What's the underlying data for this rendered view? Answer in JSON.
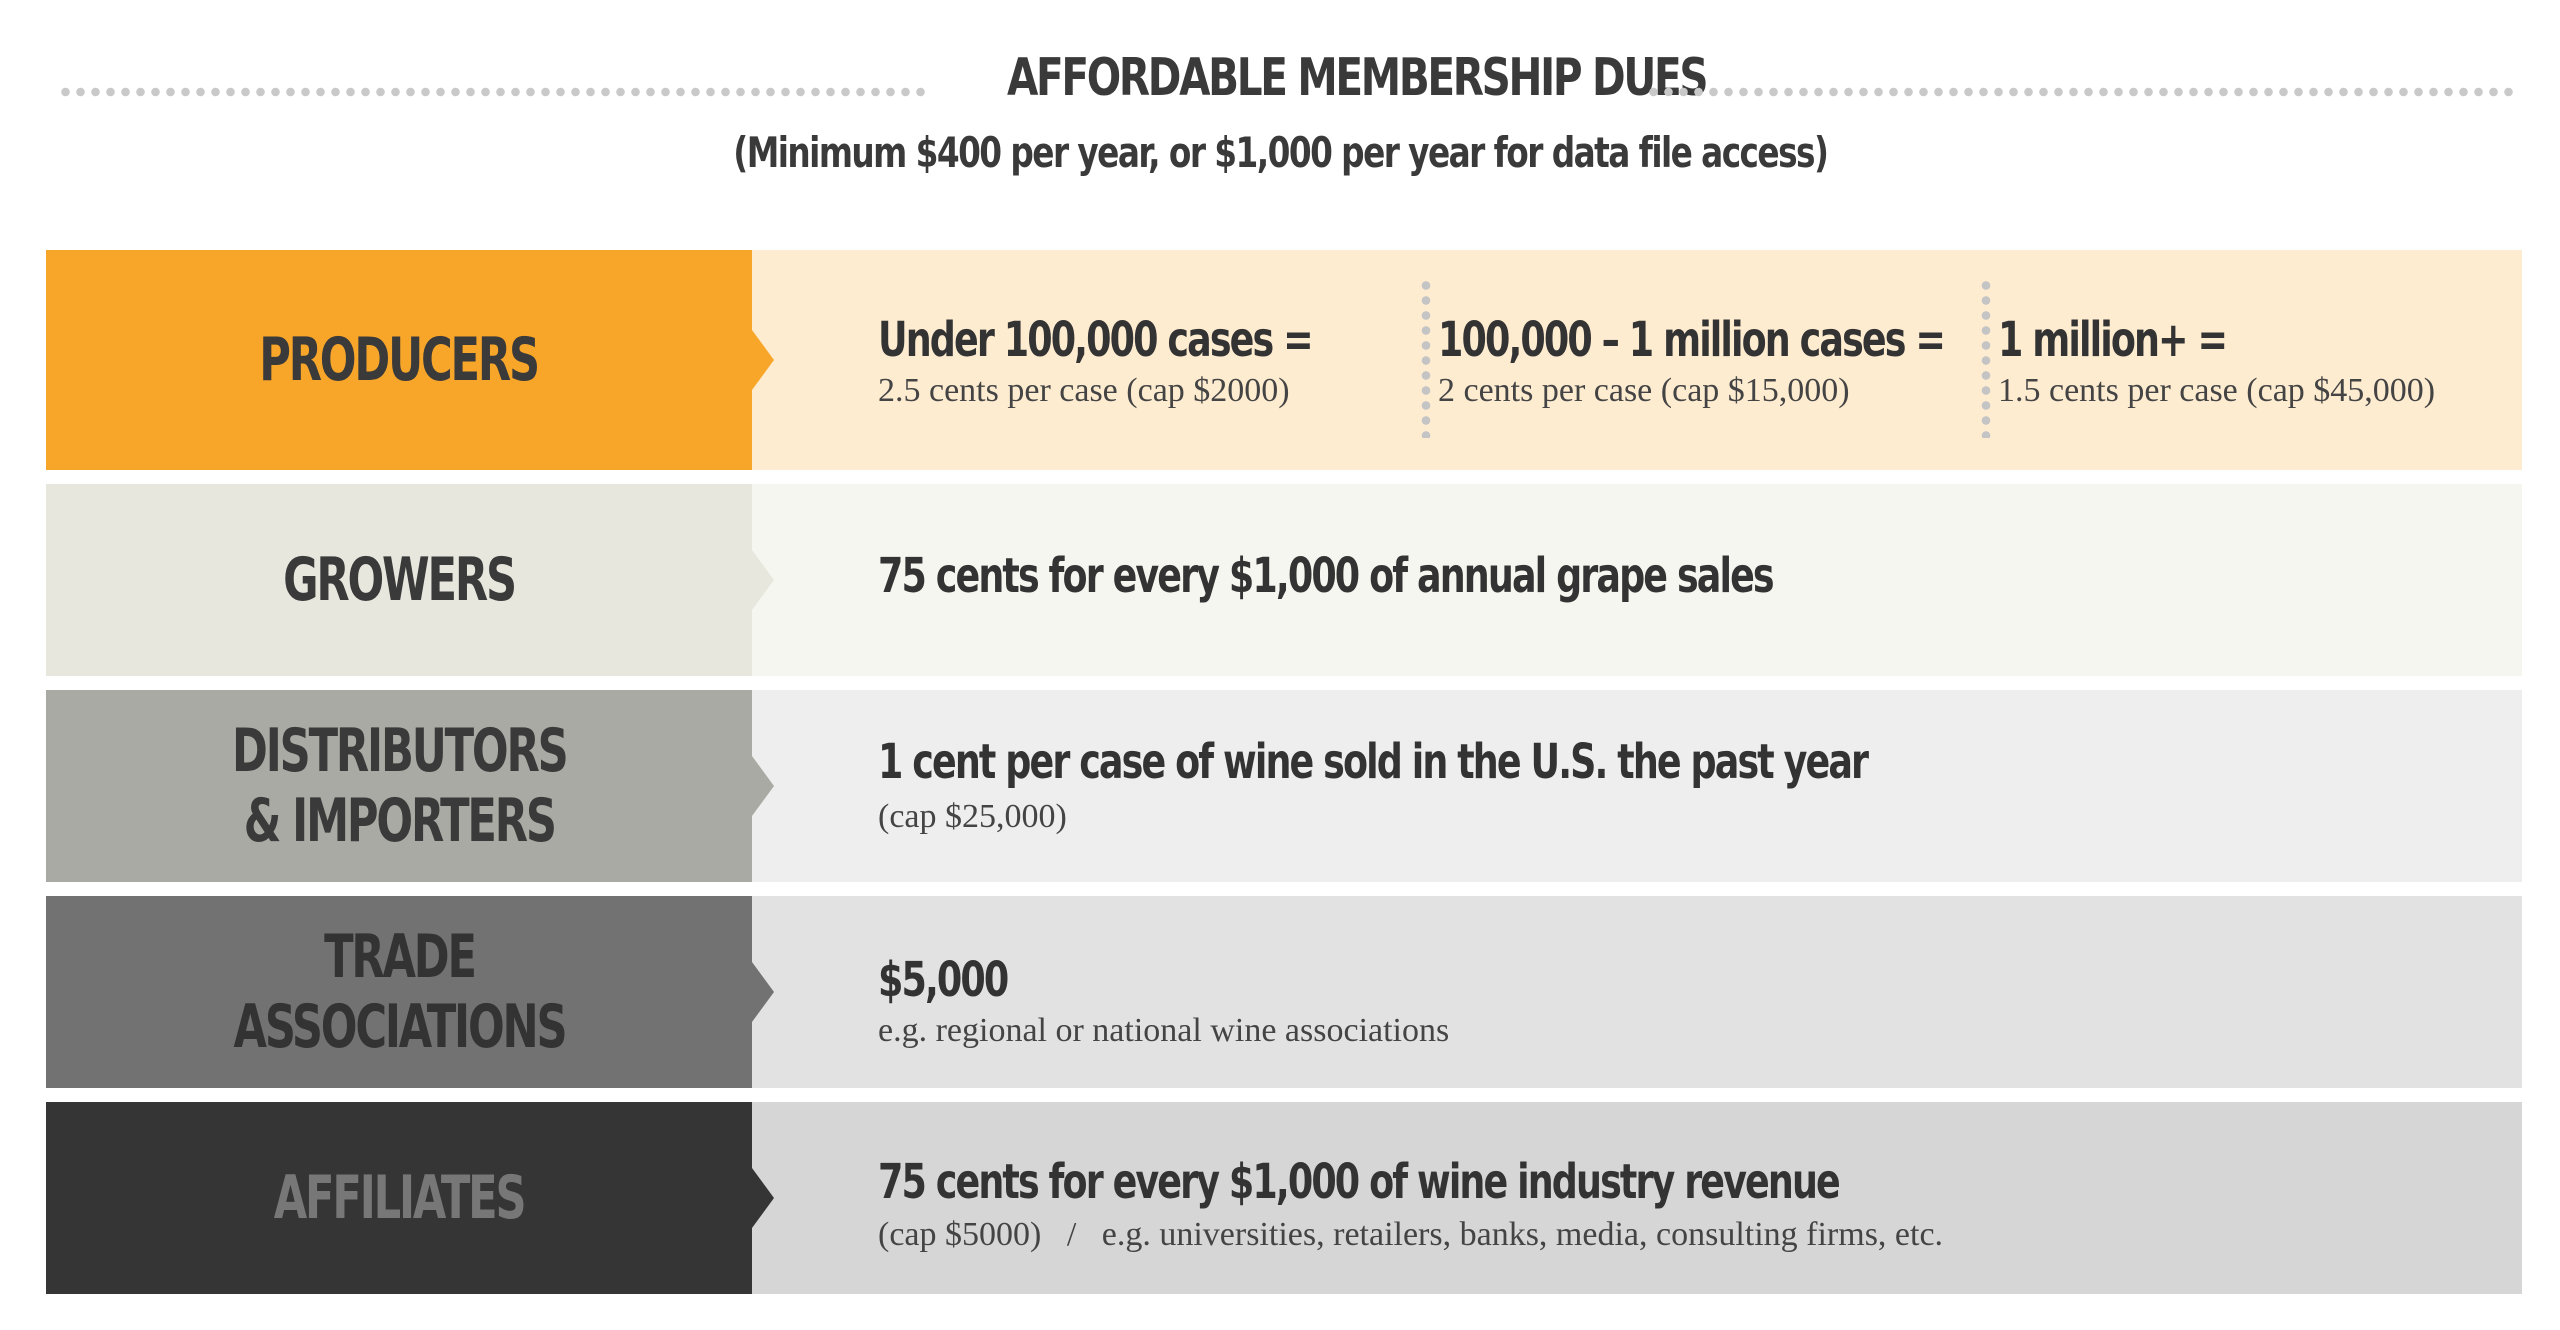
{
  "header": {
    "title": "AFFORDABLE MEMBERSHIP DUES",
    "subtitle": "(Minimum $400 per year, or $1,000 per year for data file access)"
  },
  "rows": {
    "producers": {
      "label": "PRODUCERS",
      "tiers": [
        {
          "main": "Under 100,000 cases =",
          "sub": "2.5 cents per case (cap $2000)"
        },
        {
          "main": "100,000 – 1 million cases =",
          "sub": "2 cents per case (cap $15,000)"
        },
        {
          "main": "1 million+ =",
          "sub": "1.5 cents per case (cap $45,000)"
        }
      ]
    },
    "growers": {
      "label": "GROWERS",
      "main": "75 cents for every $1,000 of annual grape sales"
    },
    "distributors": {
      "label": "DISTRIBUTORS\n& IMPORTERS",
      "main": "1 cent per case of wine sold in the U.S. the past year",
      "sub": "(cap $25,000)"
    },
    "trade": {
      "label": "TRADE\nASSOCIATIONS",
      "main": "$5,000",
      "sub": "e.g. regional or national wine associations"
    },
    "affiliates": {
      "label": "AFFILIATES",
      "main": "75 cents for every $1,000 of wine industry revenue",
      "sub": "(cap $5000)   /   e.g. universities, retailers, banks, media, consulting firms, etc."
    }
  },
  "colors": {
    "producers_accent": "#f8a629",
    "producers_bg": "#feecd1",
    "growers_accent": "#e8e7de",
    "distributors_accent": "#a9aaa4",
    "trade_accent": "#727272",
    "affiliates_accent": "#353535"
  }
}
